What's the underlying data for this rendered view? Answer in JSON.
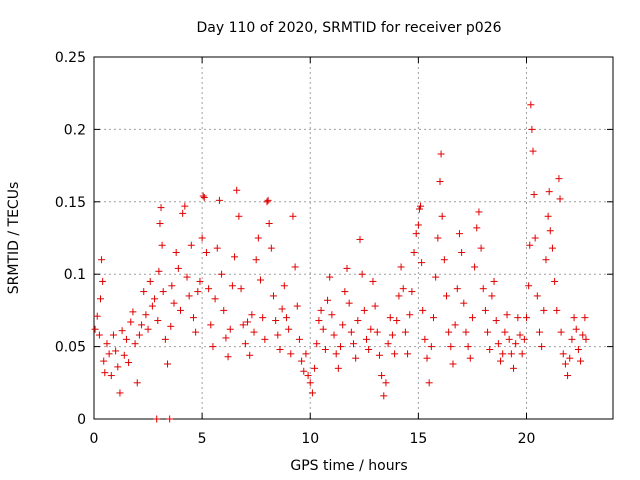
{
  "chart_data": {
    "type": "scatter",
    "title": "Day 110 of 2020, SRMTID for receiver p026",
    "xlabel": "GPS time / hours",
    "ylabel": "SRMTID / TECUs",
    "xlim": [
      0,
      24
    ],
    "ylim": [
      0,
      0.25
    ],
    "x_ticks": [
      0,
      5,
      10,
      15,
      20
    ],
    "x_tick_labels": [
      "0",
      "5",
      "10",
      "15",
      "20"
    ],
    "y_ticks": [
      0,
      0.05,
      0.1,
      0.15,
      0.2,
      0.25
    ],
    "y_tick_labels": [
      "0",
      "0.05",
      "0.1",
      "0.15",
      "0.2",
      "0.25"
    ],
    "grid": true,
    "marker": "+",
    "color": "#e00000",
    "series": [
      {
        "name": "SRMTID",
        "points": [
          [
            0.05,
            0.062
          ],
          [
            0.15,
            0.071
          ],
          [
            0.25,
            0.058
          ],
          [
            0.3,
            0.083
          ],
          [
            0.35,
            0.11
          ],
          [
            0.4,
            0.095
          ],
          [
            0.45,
            0.04
          ],
          [
            0.5,
            0.032
          ],
          [
            0.6,
            0.052
          ],
          [
            0.7,
            0.045
          ],
          [
            0.8,
            0.03
          ],
          [
            0.9,
            0.058
          ],
          [
            1.0,
            0.047
          ],
          [
            1.1,
            0.036
          ],
          [
            1.2,
            0.018
          ],
          [
            1.3,
            0.061
          ],
          [
            1.4,
            0.044
          ],
          [
            1.5,
            0.055
          ],
          [
            1.6,
            0.039
          ],
          [
            1.7,
            0.067
          ],
          [
            1.8,
            0.074
          ],
          [
            1.9,
            0.052
          ],
          [
            2.0,
            0.025
          ],
          [
            2.1,
            0.058
          ],
          [
            2.2,
            0.065
          ],
          [
            2.3,
            0.088
          ],
          [
            2.4,
            0.072
          ],
          [
            2.5,
            0.062
          ],
          [
            2.6,
            0.095
          ],
          [
            2.7,
            0.078
          ],
          [
            2.8,
            0.083
          ],
          [
            2.9,
            0.0
          ],
          [
            2.95,
            0.068
          ],
          [
            3.0,
            0.102
          ],
          [
            3.05,
            0.135
          ],
          [
            3.1,
            0.146
          ],
          [
            3.15,
            0.12
          ],
          [
            3.2,
            0.088
          ],
          [
            3.3,
            0.055
          ],
          [
            3.4,
            0.038
          ],
          [
            3.5,
            0.0
          ],
          [
            3.55,
            0.064
          ],
          [
            3.6,
            0.092
          ],
          [
            3.7,
            0.08
          ],
          [
            3.8,
            0.115
          ],
          [
            3.9,
            0.104
          ],
          [
            4.0,
            0.075
          ],
          [
            4.1,
            0.142
          ],
          [
            4.2,
            0.147
          ],
          [
            4.3,
            0.098
          ],
          [
            4.4,
            0.085
          ],
          [
            4.5,
            0.12
          ],
          [
            4.6,
            0.07
          ],
          [
            4.7,
            0.06
          ],
          [
            4.8,
            0.088
          ],
          [
            4.9,
            0.095
          ],
          [
            5.0,
            0.125
          ],
          [
            5.05,
            0.154
          ],
          [
            5.1,
            0.153
          ],
          [
            5.2,
            0.115
          ],
          [
            5.3,
            0.09
          ],
          [
            5.4,
            0.065
          ],
          [
            5.5,
            0.05
          ],
          [
            5.6,
            0.083
          ],
          [
            5.7,
            0.118
          ],
          [
            5.8,
            0.151
          ],
          [
            5.9,
            0.1
          ],
          [
            6.0,
            0.075
          ],
          [
            6.1,
            0.056
          ],
          [
            6.2,
            0.043
          ],
          [
            6.3,
            0.062
          ],
          [
            6.4,
            0.092
          ],
          [
            6.5,
            0.112
          ],
          [
            6.6,
            0.158
          ],
          [
            6.7,
            0.14
          ],
          [
            6.8,
            0.09
          ],
          [
            6.9,
            0.065
          ],
          [
            7.0,
            0.052
          ],
          [
            7.1,
            0.067
          ],
          [
            7.2,
            0.044
          ],
          [
            7.3,
            0.072
          ],
          [
            7.4,
            0.06
          ],
          [
            7.5,
            0.11
          ],
          [
            7.6,
            0.125
          ],
          [
            7.7,
            0.096
          ],
          [
            7.8,
            0.07
          ],
          [
            7.9,
            0.055
          ],
          [
            8.0,
            0.15
          ],
          [
            8.05,
            0.151
          ],
          [
            8.1,
            0.135
          ],
          [
            8.2,
            0.118
          ],
          [
            8.3,
            0.085
          ],
          [
            8.4,
            0.068
          ],
          [
            8.5,
            0.058
          ],
          [
            8.6,
            0.048
          ],
          [
            8.7,
            0.076
          ],
          [
            8.8,
            0.092
          ],
          [
            8.9,
            0.07
          ],
          [
            9.0,
            0.062
          ],
          [
            9.1,
            0.045
          ],
          [
            9.2,
            0.14
          ],
          [
            9.3,
            0.105
          ],
          [
            9.4,
            0.078
          ],
          [
            9.5,
            0.055
          ],
          [
            9.6,
            0.04
          ],
          [
            9.7,
            0.033
          ],
          [
            9.8,
            0.045
          ],
          [
            9.9,
            0.03
          ],
          [
            10.0,
            0.025
          ],
          [
            10.1,
            0.018
          ],
          [
            10.2,
            0.035
          ],
          [
            10.3,
            0.052
          ],
          [
            10.4,
            0.068
          ],
          [
            10.5,
            0.075
          ],
          [
            10.6,
            0.062
          ],
          [
            10.7,
            0.048
          ],
          [
            10.8,
            0.082
          ],
          [
            10.9,
            0.098
          ],
          [
            11.0,
            0.072
          ],
          [
            11.1,
            0.058
          ],
          [
            11.2,
            0.045
          ],
          [
            11.3,
            0.035
          ],
          [
            11.4,
            0.05
          ],
          [
            11.5,
            0.065
          ],
          [
            11.6,
            0.088
          ],
          [
            11.7,
            0.104
          ],
          [
            11.8,
            0.08
          ],
          [
            11.9,
            0.06
          ],
          [
            12.0,
            0.052
          ],
          [
            12.1,
            0.042
          ],
          [
            12.2,
            0.068
          ],
          [
            12.3,
            0.124
          ],
          [
            12.4,
            0.1
          ],
          [
            12.5,
            0.075
          ],
          [
            12.6,
            0.055
          ],
          [
            12.7,
            0.048
          ],
          [
            12.8,
            0.062
          ],
          [
            12.9,
            0.095
          ],
          [
            13.0,
            0.078
          ],
          [
            13.1,
            0.06
          ],
          [
            13.2,
            0.044
          ],
          [
            13.3,
            0.03
          ],
          [
            13.4,
            0.016
          ],
          [
            13.5,
            0.025
          ],
          [
            13.6,
            0.052
          ],
          [
            13.7,
            0.07
          ],
          [
            13.8,
            0.058
          ],
          [
            13.9,
            0.045
          ],
          [
            14.0,
            0.068
          ],
          [
            14.1,
            0.085
          ],
          [
            14.2,
            0.105
          ],
          [
            14.3,
            0.09
          ],
          [
            14.4,
            0.06
          ],
          [
            14.5,
            0.045
          ],
          [
            14.6,
            0.072
          ],
          [
            14.7,
            0.088
          ],
          [
            14.8,
            0.115
          ],
          [
            14.9,
            0.128
          ],
          [
            15.0,
            0.134
          ],
          [
            15.05,
            0.145
          ],
          [
            15.1,
            0.147
          ],
          [
            15.15,
            0.108
          ],
          [
            15.2,
            0.075
          ],
          [
            15.3,
            0.055
          ],
          [
            15.4,
            0.042
          ],
          [
            15.5,
            0.025
          ],
          [
            15.6,
            0.05
          ],
          [
            15.7,
            0.07
          ],
          [
            15.8,
            0.098
          ],
          [
            15.9,
            0.125
          ],
          [
            16.0,
            0.164
          ],
          [
            16.05,
            0.183
          ],
          [
            16.1,
            0.14
          ],
          [
            16.2,
            0.11
          ],
          [
            16.3,
            0.085
          ],
          [
            16.4,
            0.06
          ],
          [
            16.5,
            0.05
          ],
          [
            16.6,
            0.038
          ],
          [
            16.7,
            0.065
          ],
          [
            16.8,
            0.09
          ],
          [
            16.9,
            0.128
          ],
          [
            17.0,
            0.115
          ],
          [
            17.1,
            0.08
          ],
          [
            17.2,
            0.06
          ],
          [
            17.3,
            0.05
          ],
          [
            17.4,
            0.042
          ],
          [
            17.5,
            0.07
          ],
          [
            17.6,
            0.105
          ],
          [
            17.7,
            0.132
          ],
          [
            17.8,
            0.143
          ],
          [
            17.9,
            0.118
          ],
          [
            18.0,
            0.09
          ],
          [
            18.1,
            0.075
          ],
          [
            18.2,
            0.06
          ],
          [
            18.3,
            0.048
          ],
          [
            18.4,
            0.085
          ],
          [
            18.5,
            0.095
          ],
          [
            18.6,
            0.068
          ],
          [
            18.7,
            0.052
          ],
          [
            18.8,
            0.04
          ],
          [
            18.9,
            0.045
          ],
          [
            19.0,
            0.06
          ],
          [
            19.1,
            0.072
          ],
          [
            19.2,
            0.055
          ],
          [
            19.3,
            0.045
          ],
          [
            19.4,
            0.035
          ],
          [
            19.5,
            0.052
          ],
          [
            19.6,
            0.07
          ],
          [
            19.7,
            0.058
          ],
          [
            19.8,
            0.045
          ],
          [
            19.9,
            0.055
          ],
          [
            20.0,
            0.07
          ],
          [
            20.1,
            0.092
          ],
          [
            20.15,
            0.12
          ],
          [
            20.2,
            0.217
          ],
          [
            20.25,
            0.2
          ],
          [
            20.3,
            0.185
          ],
          [
            20.35,
            0.155
          ],
          [
            20.4,
            0.125
          ],
          [
            20.5,
            0.085
          ],
          [
            20.6,
            0.06
          ],
          [
            20.7,
            0.05
          ],
          [
            20.8,
            0.075
          ],
          [
            20.9,
            0.11
          ],
          [
            21.0,
            0.14
          ],
          [
            21.05,
            0.157
          ],
          [
            21.1,
            0.13
          ],
          [
            21.2,
            0.118
          ],
          [
            21.3,
            0.095
          ],
          [
            21.4,
            0.075
          ],
          [
            21.5,
            0.166
          ],
          [
            21.55,
            0.152
          ],
          [
            21.6,
            0.06
          ],
          [
            21.7,
            0.045
          ],
          [
            21.8,
            0.038
          ],
          [
            21.9,
            0.03
          ],
          [
            22.0,
            0.042
          ],
          [
            22.1,
            0.055
          ],
          [
            22.2,
            0.07
          ],
          [
            22.3,
            0.062
          ],
          [
            22.4,
            0.048
          ],
          [
            22.5,
            0.04
          ],
          [
            22.6,
            0.058
          ],
          [
            22.7,
            0.07
          ],
          [
            22.75,
            0.055
          ]
        ]
      }
    ]
  }
}
